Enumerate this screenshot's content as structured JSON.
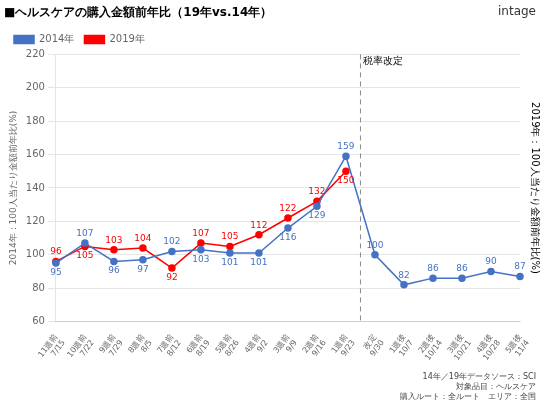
{
  "chart_data": {
    "type": "line",
    "title": "■ヘルスケアの購入金額前年比（19年vs.14年）",
    "categories": [
      "11週前\n7/15",
      "10週前\n7/22",
      "9週前\n7/29",
      "8週前\n8/5",
      "7週前\n8/12",
      "6週前\n8/19",
      "5週前\n8/26",
      "4週前\n9/2",
      "3週前\n9/9",
      "2週前\n9/16",
      "1週前\n9/23",
      "改定\n9/30",
      "1週後\n10/7",
      "2週後\n10/14",
      "3週後\n10/21",
      "4週後\n10/28",
      "5週後\n11/4"
    ],
    "series": [
      {
        "name": "2014年",
        "color": "#4472C4",
        "marker": "circle",
        "line_style": "solid",
        "values": [
          95,
          107,
          96,
          97,
          102,
          103,
          101,
          101,
          116,
          129,
          159,
          100,
          82,
          86,
          86,
          90,
          87
        ]
      },
      {
        "name": "2019年",
        "color": "#FF0000",
        "marker": "circle",
        "line_style": "solid",
        "values": [
          96,
          105,
          103,
          104,
          92,
          107,
          105,
          112,
          122,
          132,
          150,
          null,
          null,
          null,
          null,
          null,
          null
        ]
      }
    ],
    "ylabel": "2014年：100人当たり金額前年比(%)",
    "y2label": "2019年：100人当たり金額前年比(%)",
    "ylim": [
      60,
      220
    ],
    "yticks": [
      60,
      80,
      100,
      120,
      140,
      160,
      180,
      200,
      220
    ],
    "grid": "y",
    "legend": "upper left",
    "data_labels": true,
    "annotations": [
      {
        "text": "税率改定",
        "category": "改定\n9/30"
      }
    ],
    "note": "14年／19年データソース：SCI\n対象品目：ヘルスケア\n購入ルート：全ルート　エリア：全国",
    "logo": "intage"
  }
}
